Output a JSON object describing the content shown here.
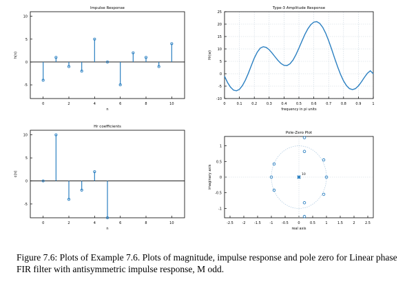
{
  "caption": "Figure 7.6: Plots of Example 7.6. Plots of magnitude, impulse response and pole zero for Linear phase FIR filter with antisymmetric impulse response, M odd.",
  "colors": {
    "data": "#2a7fc1",
    "axis": "#000000",
    "grid": "#c9d4de"
  },
  "chart_data": [
    {
      "type": "stem",
      "title": "Impulse Response",
      "xlabel": "n",
      "ylabel": "h(n)",
      "xlim": [
        -1,
        11
      ],
      "ylim": [
        -8,
        11
      ],
      "xticks": [
        0,
        2,
        4,
        6,
        8,
        10
      ],
      "yticks": [
        -5,
        0,
        5,
        10
      ],
      "grid": false,
      "x": [
        0,
        1,
        2,
        3,
        4,
        5,
        6,
        7,
        8,
        9,
        10
      ],
      "y": [
        -4,
        1,
        -1,
        -2,
        5,
        0,
        -5,
        2,
        1,
        -1,
        4
      ]
    },
    {
      "type": "line",
      "title": "Type-3 Amplitude Response",
      "xlabel": "frequency in pi units",
      "ylabel": "Hr(w)",
      "xlim": [
        0,
        1
      ],
      "ylim": [
        -10,
        25
      ],
      "xticks": [
        0,
        0.1,
        0.2,
        0.3,
        0.4,
        0.5,
        0.6,
        0.7,
        0.8,
        0.9,
        1
      ],
      "yticks": [
        -10,
        -5,
        0,
        5,
        10,
        15,
        20,
        25
      ],
      "grid": true,
      "x": [
        0,
        0.02,
        0.04,
        0.06,
        0.08,
        0.1,
        0.12,
        0.14,
        0.16,
        0.18,
        0.2,
        0.22,
        0.24,
        0.26,
        0.28,
        0.3,
        0.32,
        0.34,
        0.36,
        0.38,
        0.4,
        0.42,
        0.44,
        0.46,
        0.48,
        0.5,
        0.52,
        0.54,
        0.56,
        0.58,
        0.6,
        0.62,
        0.64,
        0.66,
        0.68,
        0.7,
        0.72,
        0.74,
        0.76,
        0.78,
        0.8,
        0.82,
        0.84,
        0.86,
        0.88,
        0.9,
        0.92,
        0.94,
        0.96,
        0.98,
        1
      ],
      "y": [
        -1,
        -3.5,
        -5.4,
        -6.6,
        -6.9,
        -6.3,
        -4.8,
        -2.6,
        0.2,
        3.3,
        6.3,
        8.7,
        10.3,
        10.9,
        10.6,
        9.7,
        8.3,
        6.8,
        5.3,
        4.1,
        3.4,
        3.3,
        4.0,
        5.5,
        7.7,
        10.3,
        13.1,
        15.8,
        18.1,
        19.8,
        20.8,
        21.0,
        20.3,
        18.7,
        16.3,
        13.3,
        9.9,
        6.3,
        2.8,
        -0.3,
        -2.9,
        -4.8,
        -6.0,
        -6.4,
        -6.0,
        -4.9,
        -3.3,
        -1.5,
        0.2,
        1.2,
        0
      ]
    },
    {
      "type": "stem",
      "title": "Hr coefficients",
      "xlabel": "n",
      "ylabel": "c(n)",
      "xlim": [
        -1,
        11
      ],
      "ylim": [
        -8,
        11
      ],
      "xticks": [
        0,
        2,
        4,
        6,
        8,
        10
      ],
      "yticks": [
        -5,
        0,
        5,
        10
      ],
      "grid": false,
      "x": [
        0,
        1,
        2,
        3,
        4,
        5
      ],
      "y": [
        0,
        10,
        -4,
        -2,
        2,
        -8
      ]
    },
    {
      "type": "scatter",
      "title": "Pole-Zero Plot",
      "xlabel": "real axis",
      "ylabel": "imaginary axis",
      "xlim": [
        -2.7,
        2.7
      ],
      "ylim": [
        -1.3,
        1.3
      ],
      "xticks": [
        -2.5,
        -2,
        -1.5,
        -1,
        -0.5,
        0,
        0.5,
        1,
        1.5,
        2,
        2.5
      ],
      "yticks": [
        -1,
        -0.5,
        0,
        0.5,
        1
      ],
      "grid": false,
      "unit_circle": true,
      "pole_label": "10",
      "zeros": [
        {
          "re": 0.2,
          "im": 1.26
        },
        {
          "re": 0.2,
          "im": 0.82
        },
        {
          "re": 0.9,
          "im": 0.55
        },
        {
          "re": 1.0,
          "im": 0.0
        },
        {
          "re": 0.9,
          "im": -0.55
        },
        {
          "re": 0.2,
          "im": -0.82
        },
        {
          "re": 0.2,
          "im": -1.26
        },
        {
          "re": -0.9,
          "im": 0.42
        },
        {
          "re": -1.0,
          "im": 0.0
        },
        {
          "re": -0.9,
          "im": -0.42
        },
        {
          "re": 0.0,
          "im": 0.0
        }
      ],
      "poles": [
        {
          "re": 0.0,
          "im": 0.0
        }
      ]
    }
  ]
}
